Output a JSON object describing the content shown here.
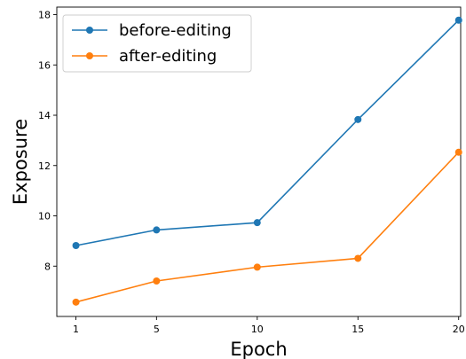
{
  "chart_data": {
    "type": "line",
    "title": "",
    "xlabel": "Epoch",
    "ylabel": "Exposure",
    "x": [
      1,
      5,
      10,
      15,
      20
    ],
    "xticks": [
      1,
      5,
      10,
      15,
      20
    ],
    "yticks": [
      8,
      10,
      12,
      14,
      16,
      18
    ],
    "xlim": [
      0.05,
      20.1
    ],
    "ylim": [
      6.0,
      18.3
    ],
    "grid": false,
    "legend_position": "top-left",
    "series": [
      {
        "name": "before-editing",
        "color": "#1f77b4",
        "marker": "circle",
        "values": [
          8.82,
          9.44,
          9.73,
          13.83,
          17.78
        ]
      },
      {
        "name": "after-editing",
        "color": "#ff7f0e",
        "marker": "circle",
        "values": [
          6.57,
          7.41,
          7.96,
          8.31,
          12.53
        ]
      }
    ]
  }
}
